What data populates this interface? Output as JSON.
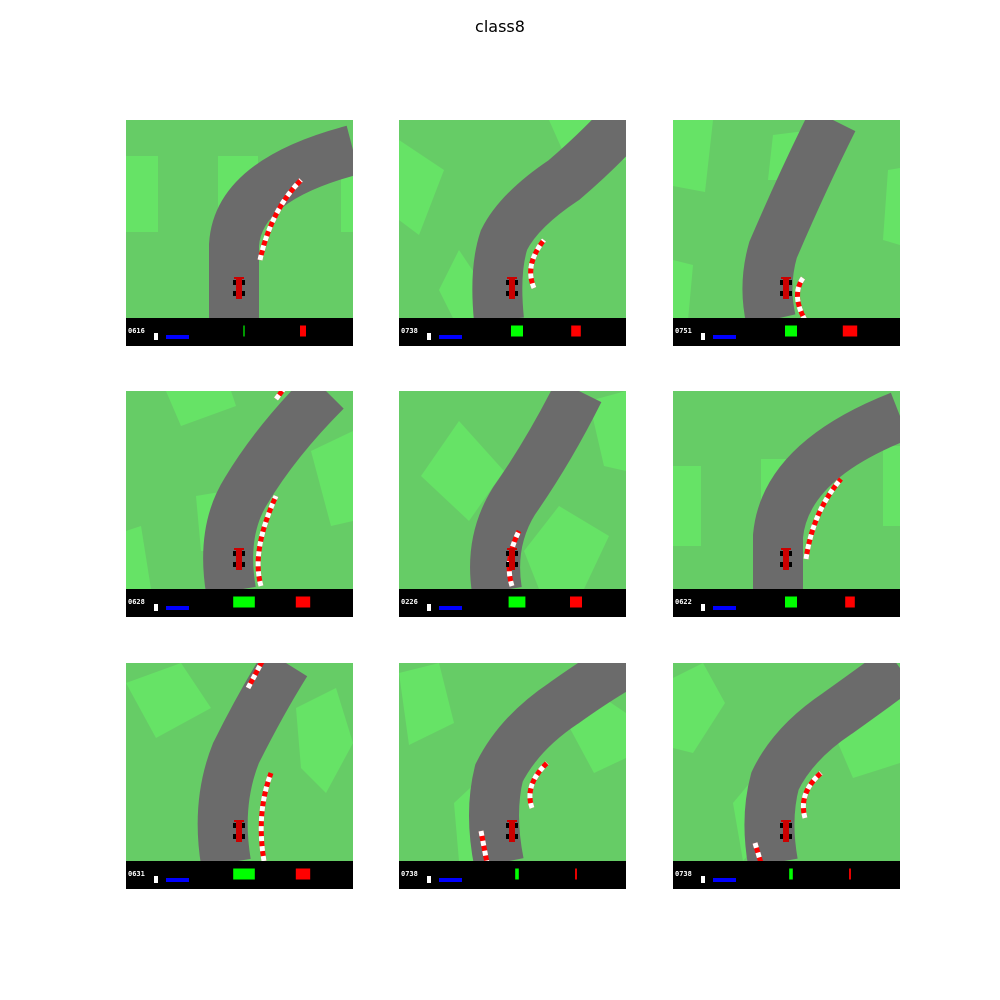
{
  "figure": {
    "title": "class8"
  },
  "colors": {
    "grass": "#66cc66",
    "grass_tile": "#66e366",
    "road": "#6b6b6b",
    "road_stripe": "#737373",
    "curb_red": "#ff0000",
    "curb_white": "#ffffff",
    "car": "#cc0000",
    "hud": "#000000",
    "speed_bar": "#0000ff",
    "abs_bar": "#00ff00",
    "gyro_bar": "#ff0000"
  },
  "frames": [
    {
      "score": "0616",
      "abs_level": 0.1,
      "gyro_level": 0.5
    },
    {
      "score": "0738",
      "abs_level": 1.0,
      "gyro_level": 0.8
    },
    {
      "score": "0751",
      "abs_level": 1.0,
      "gyro_level": 1.2
    },
    {
      "score": "0628",
      "abs_level": 1.8,
      "gyro_level": 1.2
    },
    {
      "score": "0226",
      "abs_level": 1.4,
      "gyro_level": 1.0
    },
    {
      "score": "0622",
      "abs_level": 1.0,
      "gyro_level": 0.8
    },
    {
      "score": "0631",
      "abs_level": 1.8,
      "gyro_level": 1.2
    },
    {
      "score": "0738",
      "abs_level": 0.3,
      "gyro_level": 0.15
    },
    {
      "score": "0738",
      "abs_level": 0.3,
      "gyro_level": 0.15
    }
  ]
}
